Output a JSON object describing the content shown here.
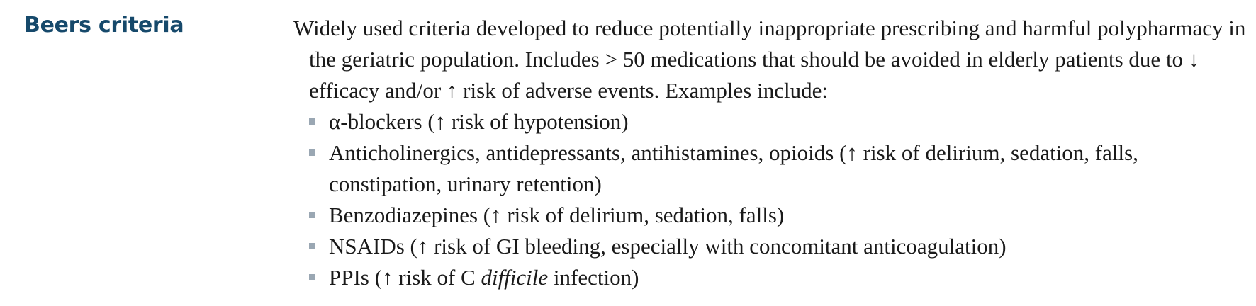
{
  "term": "Beers criteria",
  "intro": "Widely used criteria developed to reduce potentially inappropriate prescribing and harmful polypharmacy in the geriatric population. Includes > 50 medications that should be avoided in elderly patients due to ↓ efficacy and/or ↑ risk of adverse events. Examples include:",
  "bullets": {
    "alpha_blockers": "α-blockers (↑ risk of hypotension)",
    "anticholinergics": "Anticholinergics, antidepressants, antihistamines, opioids (↑ risk of delirium, sedation, falls, constipation, urinary retention)",
    "benzodiazepines": "Benzodiazepines (↑ risk of delirium, sedation, falls)",
    "nsaids": "NSAIDs (↑ risk of GI bleeding, especially with concomitant anticoagulation)",
    "ppis": {
      "before": "PPIs (↑ risk of C ",
      "organism": "difficile",
      "after": " infection)"
    }
  },
  "colors": {
    "term": "#16496b",
    "body_text": "#1a1a1a",
    "bullet_marker": "#9aa7b3"
  }
}
